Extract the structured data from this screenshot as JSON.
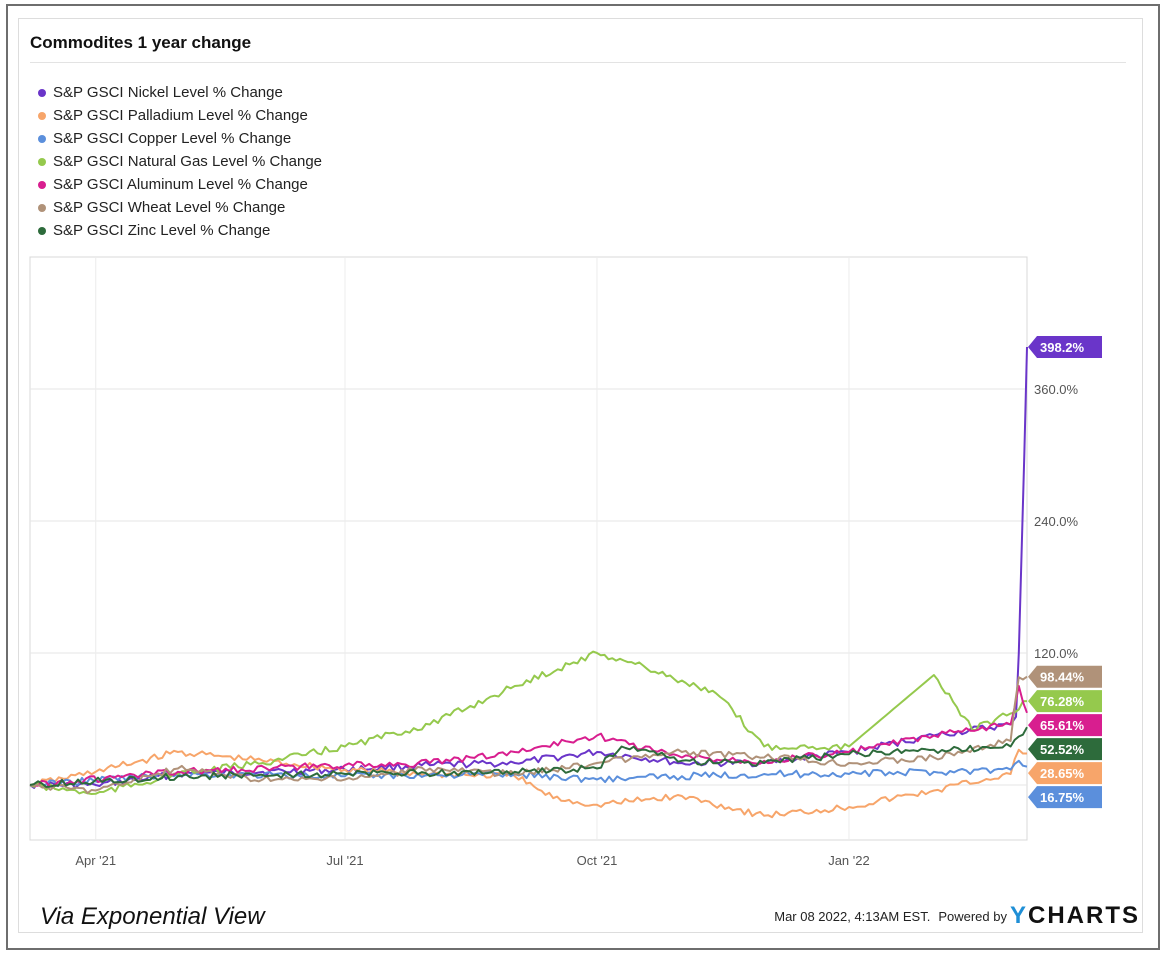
{
  "watermark": "Via Exponential View",
  "footer": {
    "timestamp": "Mar 08 2022, 4:13AM EST.",
    "powered_by": "Powered by",
    "logo_y": "Y",
    "logo_text": "CHARTS"
  },
  "chart_data": {
    "type": "line",
    "title": "Commodites 1 year change",
    "xlabel": "",
    "ylabel": "",
    "legend_position": "top-left",
    "grid": true,
    "x_range": [
      "2021-03-08",
      "2022-03-07"
    ],
    "ylim": [
      -50,
      480
    ],
    "yticks": [
      120,
      240,
      360
    ],
    "ytick_labels": [
      "120.0%",
      "240.0%",
      "360.0%"
    ],
    "xticks": [
      "2021-04-01",
      "2021-07-01",
      "2021-10-01",
      "2022-01-01"
    ],
    "xtick_labels": [
      "Apr '21",
      "Jul '21",
      "Oct '21",
      "Jan '22"
    ],
    "series": [
      {
        "name": "S&P GSCI Nickel Level % Change",
        "color": "#6a35c9",
        "end_label": "398.2%",
        "points": [
          [
            "2021-03-08",
            0
          ],
          [
            "2021-04-01",
            0
          ],
          [
            "2021-05-01",
            10
          ],
          [
            "2021-06-01",
            12
          ],
          [
            "2021-07-01",
            14
          ],
          [
            "2021-08-01",
            18
          ],
          [
            "2021-09-01",
            20
          ],
          [
            "2021-10-01",
            30
          ],
          [
            "2021-11-01",
            20
          ],
          [
            "2021-12-01",
            20
          ],
          [
            "2022-01-01",
            30
          ],
          [
            "2022-02-01",
            45
          ],
          [
            "2022-03-01",
            55
          ],
          [
            "2022-03-03",
            62
          ],
          [
            "2022-03-04",
            120
          ],
          [
            "2022-03-06",
            300
          ],
          [
            "2022-03-07",
            398.2
          ]
        ]
      },
      {
        "name": "S&P GSCI Palladium Level % Change",
        "color": "#f7a56a",
        "end_label": "28.65%",
        "points": [
          [
            "2021-03-08",
            0
          ],
          [
            "2021-04-01",
            12
          ],
          [
            "2021-05-01",
            30
          ],
          [
            "2021-06-01",
            22
          ],
          [
            "2021-07-01",
            14
          ],
          [
            "2021-08-01",
            10
          ],
          [
            "2021-09-01",
            8
          ],
          [
            "2021-09-15",
            -12
          ],
          [
            "2021-10-01",
            -18
          ],
          [
            "2021-11-01",
            -10
          ],
          [
            "2021-12-01",
            -28
          ],
          [
            "2022-01-01",
            -20
          ],
          [
            "2022-02-01",
            -5
          ],
          [
            "2022-03-01",
            10
          ],
          [
            "2022-03-04",
            32
          ],
          [
            "2022-03-07",
            28.65
          ]
        ]
      },
      {
        "name": "S&P GSCI Copper Level % Change",
        "color": "#5b8fdc",
        "end_label": "16.75%",
        "points": [
          [
            "2021-03-08",
            0
          ],
          [
            "2021-05-01",
            10
          ],
          [
            "2021-07-01",
            8
          ],
          [
            "2021-09-01",
            10
          ],
          [
            "2021-10-01",
            5
          ],
          [
            "2021-11-01",
            8
          ],
          [
            "2021-12-01",
            10
          ],
          [
            "2022-01-01",
            10
          ],
          [
            "2022-02-01",
            12
          ],
          [
            "2022-03-01",
            14
          ],
          [
            "2022-03-04",
            22
          ],
          [
            "2022-03-07",
            16.75
          ]
        ]
      },
      {
        "name": "S&P GSCI Natural Gas Level % Change",
        "color": "#95c94d",
        "end_label": "76.28%",
        "points": [
          [
            "2021-03-08",
            0
          ],
          [
            "2021-04-01",
            -8
          ],
          [
            "2021-05-01",
            10
          ],
          [
            "2021-06-01",
            20
          ],
          [
            "2021-07-01",
            35
          ],
          [
            "2021-08-01",
            55
          ],
          [
            "2021-09-01",
            90
          ],
          [
            "2021-10-01",
            120
          ],
          [
            "2021-10-15",
            110
          ],
          [
            "2021-11-01",
            95
          ],
          [
            "2021-11-15",
            80
          ],
          [
            "2021-12-01",
            35
          ],
          [
            "2022-01-01",
            35
          ],
          [
            "2022-02-01",
            100
          ],
          [
            "2022-02-15",
            50
          ],
          [
            "2022-03-01",
            65
          ],
          [
            "2022-03-07",
            76.28
          ]
        ]
      },
      {
        "name": "S&P GSCI Aluminum Level % Change",
        "color": "#d81e8f",
        "end_label": "65.61%",
        "points": [
          [
            "2021-03-08",
            0
          ],
          [
            "2021-05-01",
            12
          ],
          [
            "2021-07-01",
            18
          ],
          [
            "2021-08-01",
            20
          ],
          [
            "2021-09-01",
            30
          ],
          [
            "2021-10-01",
            45
          ],
          [
            "2021-11-01",
            25
          ],
          [
            "2021-12-01",
            22
          ],
          [
            "2022-01-01",
            30
          ],
          [
            "2022-02-01",
            45
          ],
          [
            "2022-03-01",
            55
          ],
          [
            "2022-03-04",
            90
          ],
          [
            "2022-03-07",
            65.61
          ]
        ]
      },
      {
        "name": "S&P GSCI Wheat Level % Change",
        "color": "#b09279",
        "end_label": "98.44%",
        "points": [
          [
            "2021-03-08",
            0
          ],
          [
            "2021-04-01",
            -5
          ],
          [
            "2021-05-01",
            15
          ],
          [
            "2021-06-01",
            5
          ],
          [
            "2021-07-01",
            5
          ],
          [
            "2021-08-01",
            15
          ],
          [
            "2021-09-01",
            10
          ],
          [
            "2021-10-01",
            20
          ],
          [
            "2021-11-01",
            30
          ],
          [
            "2021-12-01",
            25
          ],
          [
            "2022-01-01",
            20
          ],
          [
            "2022-02-01",
            25
          ],
          [
            "2022-03-01",
            40
          ],
          [
            "2022-03-04",
            98
          ],
          [
            "2022-03-07",
            98.44
          ]
        ]
      },
      {
        "name": "S&P GSCI Zinc Level % Change",
        "color": "#2d6b3b",
        "end_label": "52.52%",
        "points": [
          [
            "2021-03-08",
            0
          ],
          [
            "2021-05-01",
            8
          ],
          [
            "2021-07-01",
            10
          ],
          [
            "2021-09-01",
            12
          ],
          [
            "2021-10-01",
            15
          ],
          [
            "2021-10-10",
            35
          ],
          [
            "2021-11-01",
            22
          ],
          [
            "2021-12-01",
            20
          ],
          [
            "2022-01-01",
            28
          ],
          [
            "2022-02-01",
            32
          ],
          [
            "2022-03-01",
            35
          ],
          [
            "2022-03-07",
            52.52
          ]
        ]
      }
    ]
  }
}
